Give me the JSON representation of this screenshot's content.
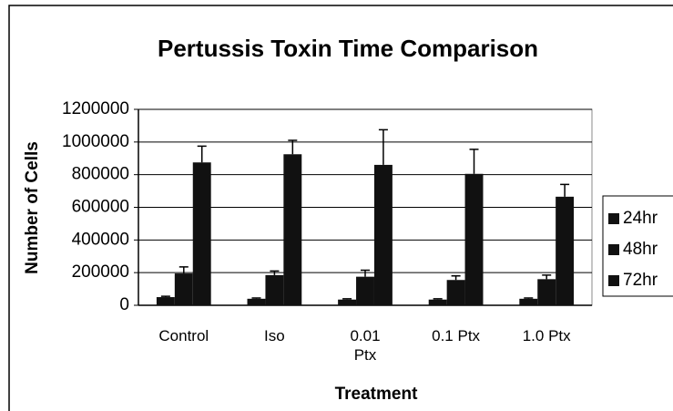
{
  "chart_data": {
    "type": "bar",
    "title": "Pertussis Toxin Time Comparison",
    "x_label": "Treatment",
    "y_label": "Number of Cells",
    "categories": [
      "Control",
      "Iso",
      "0.01 Ptx",
      "0.1 Ptx",
      "1.0 Ptx"
    ],
    "series": [
      {
        "name": "24hr",
        "color": "#111111",
        "values": [
          50000,
          40000,
          35000,
          35000,
          40000
        ],
        "errors": [
          5000,
          5000,
          5000,
          5000,
          5000
        ]
      },
      {
        "name": "48hr",
        "color": "#111111",
        "values": [
          195000,
          185000,
          175000,
          155000,
          160000
        ],
        "errors": [
          40000,
          25000,
          40000,
          25000,
          25000
        ]
      },
      {
        "name": "72hr",
        "color": "#111111",
        "values": [
          875000,
          925000,
          860000,
          805000,
          665000
        ],
        "errors": [
          100000,
          85000,
          215000,
          150000,
          75000
        ]
      }
    ],
    "ylim": [
      0,
      1200000
    ],
    "yticks": [
      0,
      200000,
      400000,
      600000,
      800000,
      1000000,
      1200000
    ],
    "grid": true,
    "legend": "right"
  }
}
